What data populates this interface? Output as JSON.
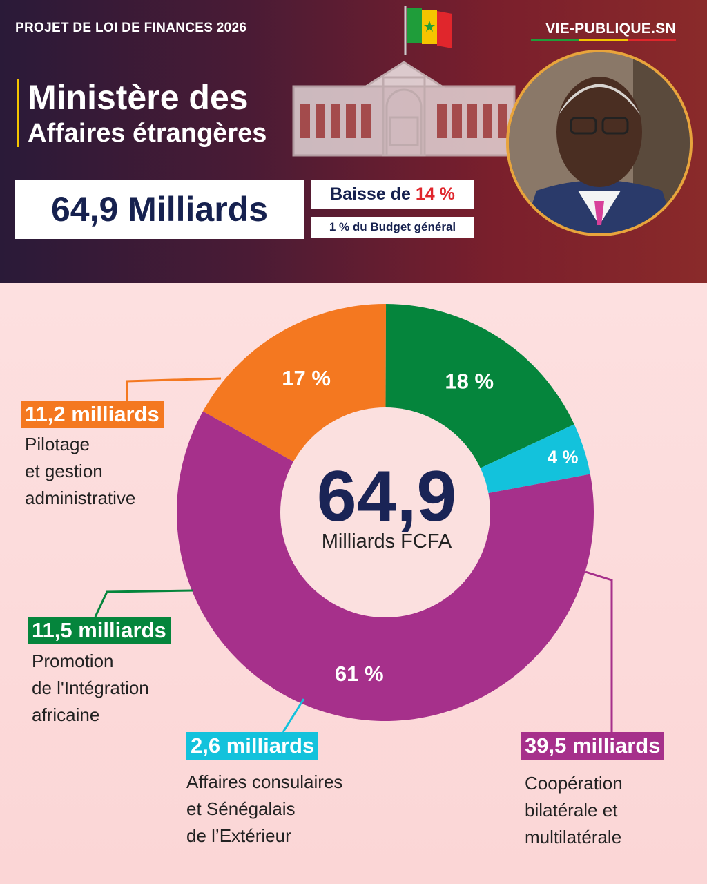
{
  "header": {
    "kicker": "PROJET DE LOI DE FINANCES 2026",
    "site": "VIE-PUBLIQUE.SN",
    "title_line1": "Ministère des",
    "title_line2": "Affaires étrangères",
    "amount": "64,9 Milliards",
    "drop_label": "Baisse de",
    "drop_value": "14 %",
    "share": "1 % du Budget général"
  },
  "colors": {
    "pilotage": "#f47820",
    "integration": "#05853c",
    "consulaires": "#13c2dc",
    "cooperation": "#a6308b",
    "title": "#1a2456"
  },
  "chart_data": {
    "type": "pie",
    "total": "64,9",
    "total_unit": "Milliards FCFA",
    "slices": [
      {
        "key": "pilotage",
        "percent": 17,
        "percent_label": "17 %",
        "amount_label": "11,2 milliards",
        "description": "Pilotage\net gestion\nadministrative"
      },
      {
        "key": "integration",
        "percent": 18,
        "percent_label": "18 %",
        "amount_label": "11,5 milliards",
        "description": "Promotion\nde l'Intégration\nafricaine"
      },
      {
        "key": "consulaires",
        "percent": 4,
        "percent_label": "4 %",
        "amount_label": "2,6 milliards",
        "description": "Affaires consulaires\net Sénégalais\nde l’Extérieur"
      },
      {
        "key": "cooperation",
        "percent": 61,
        "percent_label": "61 %",
        "amount_label": "39,5 milliards",
        "description": "Coopération\nbilatérale et\nmultilatérale"
      }
    ]
  }
}
